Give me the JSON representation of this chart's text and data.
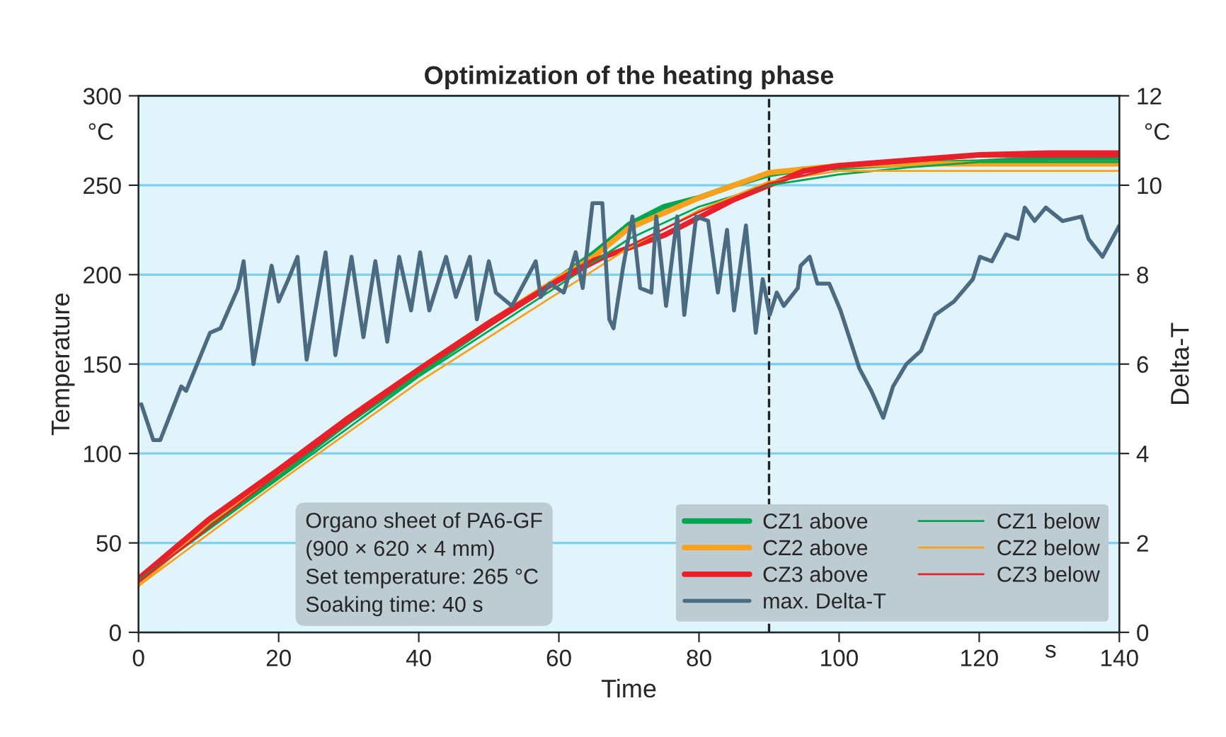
{
  "chart_data": {
    "type": "line",
    "title": "Optimization of the heating phase",
    "xlabel": "Time",
    "ylabel": "Temperature",
    "y2label": "Delta-T",
    "xlim": [
      0,
      140
    ],
    "xticks": [
      0,
      20,
      40,
      60,
      80,
      100,
      120,
      140
    ],
    "ylim": [
      0,
      300
    ],
    "yticks": [
      0,
      50,
      100,
      150,
      200,
      250,
      300
    ],
    "y2lim": [
      0,
      12
    ],
    "y2ticks": [
      0,
      2,
      4,
      6,
      8,
      10,
      12
    ],
    "grid": "y",
    "legend": "bottom right",
    "line_style": "solid",
    "marker": "none",
    "annotations": [
      "Organo sheet of PA6-GF\n(900 × 620 × 4 mm)\nSet temperature: 265 °C\nSoaking time: 40 s",
      "°C",
      "°C",
      "s"
    ],
    "ref_lines": [
      {
        "axis": "x",
        "value": 90,
        "color": "#222222",
        "line_style": "dashed"
      }
    ],
    "series": [
      {
        "name": "CZ1 above",
        "color": "#00a550",
        "x": [
          0,
          10,
          20,
          30,
          40,
          50,
          60,
          65,
          70,
          75,
          80,
          85,
          90,
          95,
          100,
          110,
          120,
          130,
          140
        ],
        "values": [
          30,
          60,
          88,
          118,
          145,
          172,
          198,
          212,
          228,
          238,
          243,
          250,
          256,
          259,
          260,
          262,
          263,
          265,
          265
        ]
      },
      {
        "name": "CZ2 above",
        "color": "#f9a11b",
        "x": [
          0,
          10,
          20,
          30,
          40,
          50,
          60,
          65,
          70,
          80,
          90,
          100,
          110,
          120,
          130,
          140
        ],
        "values": [
          27,
          62,
          90,
          120,
          147,
          173,
          198,
          210,
          226,
          243,
          257,
          261,
          262,
          262,
          262,
          262
        ]
      },
      {
        "name": "CZ3 above",
        "color": "#e8202a",
        "x": [
          0,
          10,
          20,
          30,
          40,
          50,
          60,
          65,
          70,
          75,
          80,
          85,
          90,
          95,
          100,
          110,
          120,
          130,
          140
        ],
        "values": [
          30,
          63,
          91,
          120,
          147,
          173,
          197,
          208,
          215,
          222,
          232,
          242,
          250,
          258,
          261,
          264,
          267,
          268,
          268
        ]
      },
      {
        "name": "max. Delta-T",
        "color": "#4a6b82",
        "axis": "y2",
        "x": [
          0.4,
          2.1,
          3.1,
          6.1,
          6.8,
          10.2,
          11.7,
          14.2,
          15.0,
          16.4,
          19.0,
          20.0,
          21.4,
          22.7,
          23.0,
          24.0,
          26.7,
          28.1,
          30.4,
          32.1,
          33.8,
          35.5,
          37.2,
          38.9,
          40.2,
          41.5,
          43.9,
          45.3,
          47.3,
          48.3,
          50.0,
          51.0,
          53.3,
          56.7,
          57.4,
          58.7,
          60.7,
          62.4,
          63.4,
          64.8,
          66.2,
          67.2,
          67.8,
          69.2,
          70.5,
          71.6,
          73.2,
          73.9,
          75.3,
          76.9,
          77.9,
          79.6,
          81.3,
          82.7,
          84.0,
          85.0,
          86.7,
          88.1,
          89.1,
          90.1,
          91.1,
          92.1,
          94.1,
          94.5,
          95.8,
          96.9,
          98.6,
          100.2,
          102.9,
          104.6,
          106.3,
          107.7,
          109.6,
          111.7,
          113.7,
          116.4,
          119.1,
          120.1,
          121.8,
          123.8,
          125.5,
          126.5,
          127.9,
          129.5,
          131.9,
          134.6,
          135.6,
          137.6,
          140
        ],
        "values": [
          5.1,
          4.3,
          4.3,
          5.5,
          5.4,
          6.7,
          6.8,
          7.7,
          8.3,
          6.0,
          8.2,
          7.4,
          7.9,
          8.4,
          7.8,
          6.1,
          8.5,
          6.2,
          8.4,
          6.6,
          8.3,
          6.5,
          8.4,
          7.2,
          8.5,
          7.2,
          8.4,
          7.5,
          8.4,
          7.0,
          8.3,
          7.6,
          7.3,
          8.3,
          7.5,
          7.8,
          7.6,
          8.5,
          7.7,
          9.6,
          9.6,
          7.0,
          6.8,
          8.2,
          9.3,
          7.7,
          7.6,
          9.3,
          7.3,
          9.3,
          7.1,
          9.3,
          9.2,
          7.6,
          9.0,
          7.2,
          9.1,
          6.7,
          7.9,
          7.1,
          7.6,
          7.3,
          7.7,
          8.2,
          8.4,
          7.8,
          7.8,
          7.2,
          5.9,
          5.4,
          4.8,
          5.5,
          6.0,
          6.3,
          7.1,
          7.4,
          7.9,
          8.4,
          8.3,
          8.9,
          8.8,
          9.5,
          9.2,
          9.5,
          9.2,
          9.3,
          8.8,
          8.4,
          9.1
        ]
      },
      {
        "name": "CZ1 below",
        "color": "#00a550",
        "x": [
          0,
          20,
          40,
          60,
          70,
          80,
          90,
          100,
          110,
          120,
          130,
          140
        ],
        "values": [
          29,
          86,
          143,
          194,
          220,
          238,
          250,
          256,
          260,
          263,
          263,
          263
        ]
      },
      {
        "name": "CZ2 below",
        "color": "#f9a11b",
        "x": [
          0,
          20,
          40,
          60,
          70,
          80,
          90,
          100,
          110,
          120,
          140
        ],
        "values": [
          26,
          84,
          140,
          190,
          215,
          236,
          252,
          258,
          258,
          258,
          258
        ]
      },
      {
        "name": "CZ3 below",
        "color": "#e8202a",
        "x": [
          0,
          20,
          40,
          60,
          70,
          80,
          90,
          100,
          120,
          140
        ],
        "values": [
          28,
          89,
          146,
          196,
          216,
          235,
          251,
          260,
          266,
          266
        ]
      }
    ]
  }
}
